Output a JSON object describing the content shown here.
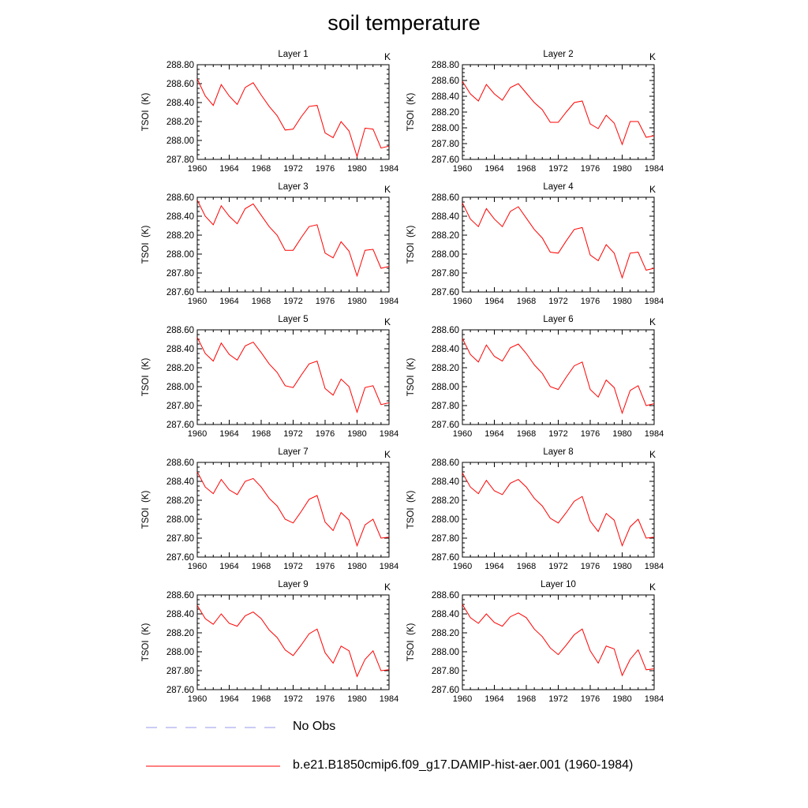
{
  "title": "soil temperature",
  "chart_data": {
    "type": "line",
    "xlim": [
      1960,
      1984
    ],
    "x_ticks": [
      1960,
      1964,
      1968,
      1972,
      1976,
      1980,
      1984
    ],
    "ylabel": "TSOI  (K)",
    "units": "K",
    "colors": {
      "model": "#ff0000",
      "obs": "#9a9aee"
    },
    "years": [
      1960,
      1961,
      1962,
      1963,
      1964,
      1965,
      1966,
      1967,
      1968,
      1969,
      1970,
      1971,
      1972,
      1973,
      1974,
      1975,
      1976,
      1977,
      1978,
      1979,
      1980,
      1981,
      1982,
      1983,
      1984
    ],
    "panels": [
      {
        "title": "Layer 1",
        "ylim": [
          287.8,
          288.8
        ],
        "yticks": [
          "288.80",
          "288.60",
          "288.40",
          "288.20",
          "288.00",
          "287.80"
        ],
        "values": [
          288.65,
          288.47,
          288.37,
          288.59,
          288.47,
          288.38,
          288.56,
          288.61,
          288.48,
          288.36,
          288.26,
          288.11,
          288.12,
          288.25,
          288.36,
          288.37,
          288.08,
          288.03,
          288.2,
          288.1,
          287.83,
          288.13,
          288.12,
          287.92,
          287.94
        ]
      },
      {
        "title": "Layer 2",
        "ylim": [
          287.6,
          288.8
        ],
        "yticks": [
          "288.80",
          "288.60",
          "288.40",
          "288.20",
          "288.00",
          "287.80",
          "287.60"
        ],
        "values": [
          288.59,
          288.43,
          288.34,
          288.55,
          288.43,
          288.35,
          288.51,
          288.56,
          288.44,
          288.32,
          288.23,
          288.07,
          288.07,
          288.2,
          288.32,
          288.34,
          288.05,
          287.99,
          288.16,
          288.06,
          287.79,
          288.08,
          288.08,
          287.88,
          287.9
        ]
      },
      {
        "title": "Layer 3",
        "ylim": [
          287.6,
          288.6
        ],
        "yticks": [
          "288.60",
          "288.40",
          "288.20",
          "288.00",
          "287.80",
          "287.60"
        ],
        "values": [
          288.57,
          288.4,
          288.31,
          288.51,
          288.4,
          288.32,
          288.48,
          288.53,
          288.41,
          288.29,
          288.2,
          288.04,
          288.04,
          288.17,
          288.29,
          288.31,
          288.01,
          287.96,
          288.13,
          288.03,
          287.77,
          288.04,
          288.05,
          287.85,
          287.87
        ]
      },
      {
        "title": "Layer 4",
        "ylim": [
          287.6,
          288.6
        ],
        "yticks": [
          "288.60",
          "288.40",
          "288.20",
          "288.00",
          "287.80",
          "287.60"
        ],
        "values": [
          288.54,
          288.37,
          288.29,
          288.48,
          288.37,
          288.29,
          288.45,
          288.5,
          288.38,
          288.26,
          288.17,
          288.02,
          288.01,
          288.14,
          288.26,
          288.28,
          287.99,
          287.93,
          288.1,
          288.01,
          287.75,
          288.01,
          288.02,
          287.83,
          287.85
        ]
      },
      {
        "title": "Layer 5",
        "ylim": [
          287.6,
          288.6
        ],
        "yticks": [
          "288.60",
          "288.40",
          "288.20",
          "288.00",
          "287.80",
          "287.60"
        ],
        "values": [
          288.52,
          288.35,
          288.27,
          288.46,
          288.34,
          288.28,
          288.43,
          288.47,
          288.36,
          288.24,
          288.15,
          288.01,
          287.99,
          288.12,
          288.24,
          288.27,
          287.98,
          287.91,
          288.08,
          288.0,
          287.73,
          287.99,
          288.01,
          287.81,
          287.83
        ]
      },
      {
        "title": "Layer 6",
        "ylim": [
          287.6,
          288.6
        ],
        "yticks": [
          "288.60",
          "288.40",
          "288.20",
          "288.00",
          "287.80",
          "287.60"
        ],
        "values": [
          288.51,
          288.34,
          288.26,
          288.44,
          288.32,
          288.27,
          288.41,
          288.45,
          288.35,
          288.23,
          288.14,
          288.0,
          287.97,
          288.1,
          288.22,
          288.26,
          287.97,
          287.89,
          288.07,
          287.99,
          287.72,
          287.96,
          288.01,
          287.8,
          287.82
        ]
      },
      {
        "title": "Layer 7",
        "ylim": [
          287.6,
          288.6
        ],
        "yticks": [
          "288.60",
          "288.40",
          "288.20",
          "288.00",
          "287.80",
          "287.60"
        ],
        "values": [
          288.5,
          288.34,
          288.27,
          288.42,
          288.31,
          288.26,
          288.4,
          288.43,
          288.34,
          288.22,
          288.14,
          288.0,
          287.96,
          288.08,
          288.21,
          288.25,
          287.97,
          287.88,
          288.07,
          287.99,
          287.72,
          287.94,
          288.0,
          287.8,
          287.81
        ]
      },
      {
        "title": "Layer 8",
        "ylim": [
          287.6,
          288.6
        ],
        "yticks": [
          "288.60",
          "288.40",
          "288.20",
          "288.00",
          "287.80",
          "287.60"
        ],
        "values": [
          288.49,
          288.34,
          288.27,
          288.41,
          288.3,
          288.26,
          288.38,
          288.42,
          288.34,
          288.22,
          288.14,
          288.01,
          287.96,
          288.07,
          288.19,
          288.24,
          287.98,
          287.87,
          288.06,
          287.99,
          287.72,
          287.92,
          288.0,
          287.8,
          287.81
        ]
      },
      {
        "title": "Layer 9",
        "ylim": [
          287.6,
          288.6
        ],
        "yticks": [
          "288.60",
          "288.40",
          "288.20",
          "288.00",
          "287.80",
          "287.60"
        ],
        "values": [
          288.49,
          288.35,
          288.29,
          288.4,
          288.3,
          288.27,
          288.38,
          288.42,
          288.35,
          288.23,
          288.15,
          288.02,
          287.96,
          288.07,
          288.19,
          288.24,
          287.99,
          287.88,
          288.06,
          288.01,
          287.74,
          287.92,
          288.01,
          287.8,
          287.81
        ]
      },
      {
        "title": "Layer 10",
        "ylim": [
          287.6,
          288.6
        ],
        "yticks": [
          "288.60",
          "288.40",
          "288.20",
          "288.00",
          "287.80",
          "287.60"
        ],
        "values": [
          288.5,
          288.36,
          288.3,
          288.4,
          288.31,
          288.27,
          288.37,
          288.41,
          288.36,
          288.24,
          288.16,
          288.04,
          287.97,
          288.07,
          288.18,
          288.24,
          288.01,
          287.88,
          288.06,
          288.03,
          287.75,
          287.92,
          288.02,
          287.81,
          287.82
        ]
      }
    ]
  },
  "legend": {
    "obs_label": "No Obs",
    "model_label": "b.e21.B1850cmip6.f09_g17.DAMIP-hist-aer.001 (1960-1984)"
  }
}
